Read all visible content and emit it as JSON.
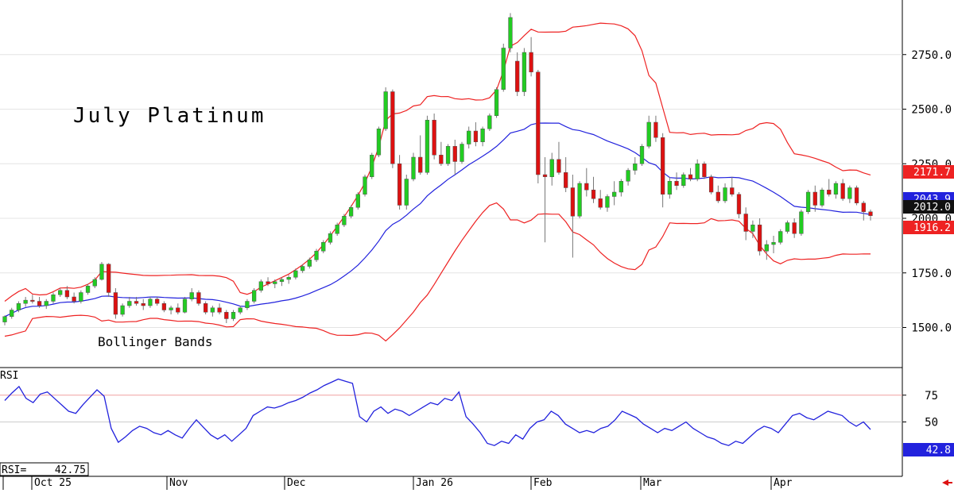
{
  "chart_data": {
    "type": "candlestick",
    "title": "July Platinum",
    "annotation": "Bollinger Bands",
    "price_axis": {
      "ticks": [
        1500,
        1750,
        2000,
        2250,
        2500,
        2750
      ],
      "ylim": [
        1320,
        3000
      ],
      "tick_labels": [
        "1500.0",
        "1750.0",
        "2000.0",
        "2250.0",
        "2500.0",
        "2750.0"
      ]
    },
    "x_labels": [
      "Oct 25",
      "Nov",
      "Dec",
      "Jan 26",
      "Feb",
      "Mar",
      "Apr"
    ],
    "last_values": {
      "upper_band": "2171.7",
      "middle_band": "2043.9",
      "close": "2012.0",
      "lower_band": "1916.2"
    },
    "colors": {
      "up": "#22cc22",
      "down": "#dd1111",
      "upper_band": "#ee2222",
      "lower_band": "#ee2222",
      "middle_band": "#2222dd",
      "rsi_line": "#2222dd",
      "close_tag": "#111111"
    },
    "candles": [
      [
        1525,
        1555,
        1510,
        1550
      ],
      [
        1550,
        1590,
        1540,
        1580
      ],
      [
        1580,
        1620,
        1570,
        1610
      ],
      [
        1610,
        1640,
        1595,
        1625
      ],
      [
        1625,
        1650,
        1610,
        1620
      ],
      [
        1620,
        1640,
        1590,
        1600
      ],
      [
        1600,
        1630,
        1585,
        1620
      ],
      [
        1620,
        1660,
        1610,
        1650
      ],
      [
        1650,
        1680,
        1640,
        1670
      ],
      [
        1670,
        1690,
        1630,
        1640
      ],
      [
        1640,
        1660,
        1610,
        1620
      ],
      [
        1620,
        1670,
        1610,
        1660
      ],
      [
        1660,
        1700,
        1650,
        1690
      ],
      [
        1690,
        1730,
        1680,
        1720
      ],
      [
        1720,
        1800,
        1715,
        1790
      ],
      [
        1790,
        1795,
        1640,
        1660
      ],
      [
        1660,
        1680,
        1540,
        1560
      ],
      [
        1560,
        1610,
        1550,
        1600
      ],
      [
        1600,
        1640,
        1590,
        1620
      ],
      [
        1620,
        1640,
        1600,
        1610
      ],
      [
        1610,
        1630,
        1580,
        1600
      ],
      [
        1600,
        1640,
        1590,
        1630
      ],
      [
        1630,
        1640,
        1600,
        1610
      ],
      [
        1610,
        1620,
        1570,
        1580
      ],
      [
        1580,
        1600,
        1560,
        1590
      ],
      [
        1590,
        1610,
        1560,
        1570
      ],
      [
        1570,
        1640,
        1565,
        1630
      ],
      [
        1630,
        1680,
        1620,
        1660
      ],
      [
        1660,
        1670,
        1600,
        1610
      ],
      [
        1610,
        1620,
        1560,
        1570
      ],
      [
        1570,
        1600,
        1550,
        1590
      ],
      [
        1590,
        1610,
        1560,
        1570
      ],
      [
        1570,
        1580,
        1520,
        1540
      ],
      [
        1540,
        1580,
        1530,
        1570
      ],
      [
        1570,
        1600,
        1560,
        1590
      ],
      [
        1590,
        1630,
        1580,
        1620
      ],
      [
        1620,
        1680,
        1610,
        1670
      ],
      [
        1670,
        1720,
        1660,
        1710
      ],
      [
        1710,
        1730,
        1690,
        1700
      ],
      [
        1700,
        1720,
        1680,
        1710
      ],
      [
        1710,
        1730,
        1690,
        1720
      ],
      [
        1720,
        1740,
        1700,
        1730
      ],
      [
        1730,
        1770,
        1720,
        1760
      ],
      [
        1760,
        1790,
        1750,
        1780
      ],
      [
        1780,
        1820,
        1770,
        1810
      ],
      [
        1810,
        1860,
        1800,
        1850
      ],
      [
        1850,
        1900,
        1840,
        1890
      ],
      [
        1890,
        1940,
        1880,
        1930
      ],
      [
        1930,
        1980,
        1920,
        1970
      ],
      [
        1970,
        2020,
        1960,
        2010
      ],
      [
        2010,
        2060,
        2000,
        2050
      ],
      [
        2050,
        2120,
        2040,
        2110
      ],
      [
        2110,
        2200,
        2100,
        2190
      ],
      [
        2190,
        2300,
        2180,
        2290
      ],
      [
        2290,
        2420,
        2280,
        2410
      ],
      [
        2410,
        2600,
        2400,
        2580
      ],
      [
        2580,
        2590,
        2230,
        2250
      ],
      [
        2250,
        2290,
        2040,
        2060
      ],
      [
        2060,
        2200,
        2040,
        2180
      ],
      [
        2180,
        2300,
        2170,
        2280
      ],
      [
        2280,
        2380,
        2200,
        2210
      ],
      [
        2210,
        2470,
        2200,
        2450
      ],
      [
        2450,
        2480,
        2270,
        2290
      ],
      [
        2290,
        2350,
        2240,
        2250
      ],
      [
        2250,
        2340,
        2240,
        2330
      ],
      [
        2330,
        2360,
        2200,
        2260
      ],
      [
        2260,
        2350,
        2250,
        2340
      ],
      [
        2340,
        2420,
        2320,
        2400
      ],
      [
        2400,
        2440,
        2330,
        2350
      ],
      [
        2350,
        2420,
        2330,
        2410
      ],
      [
        2410,
        2480,
        2400,
        2470
      ],
      [
        2470,
        2600,
        2460,
        2590
      ],
      [
        2590,
        2800,
        2580,
        2780
      ],
      [
        2780,
        2940,
        2760,
        2920
      ],
      [
        2720,
        2760,
        2560,
        2580
      ],
      [
        2580,
        2780,
        2560,
        2760
      ],
      [
        2760,
        2830,
        2650,
        2670
      ],
      [
        2670,
        2680,
        2160,
        2200
      ],
      [
        2200,
        2280,
        1890,
        2190
      ],
      [
        2190,
        2300,
        2150,
        2270
      ],
      [
        2270,
        2350,
        2200,
        2210
      ],
      [
        2210,
        2280,
        2120,
        2140
      ],
      [
        2140,
        2200,
        1820,
        2010
      ],
      [
        2010,
        2170,
        2000,
        2160
      ],
      [
        2160,
        2230,
        2100,
        2130
      ],
      [
        2130,
        2190,
        2070,
        2090
      ],
      [
        2090,
        2130,
        2040,
        2050
      ],
      [
        2050,
        2110,
        2030,
        2100
      ],
      [
        2100,
        2170,
        2060,
        2120
      ],
      [
        2120,
        2180,
        2100,
        2170
      ],
      [
        2170,
        2230,
        2150,
        2220
      ],
      [
        2220,
        2280,
        2200,
        2250
      ],
      [
        2250,
        2340,
        2240,
        2330
      ],
      [
        2330,
        2470,
        2320,
        2440
      ],
      [
        2440,
        2470,
        2350,
        2370
      ],
      [
        2370,
        2390,
        2050,
        2110
      ],
      [
        2110,
        2190,
        2090,
        2170
      ],
      [
        2170,
        2210,
        2130,
        2150
      ],
      [
        2150,
        2210,
        2140,
        2200
      ],
      [
        2200,
        2230,
        2170,
        2180
      ],
      [
        2180,
        2270,
        2170,
        2250
      ],
      [
        2250,
        2260,
        2180,
        2190
      ],
      [
        2190,
        2200,
        2110,
        2120
      ],
      [
        2120,
        2150,
        2070,
        2080
      ],
      [
        2080,
        2160,
        2070,
        2140
      ],
      [
        2140,
        2190,
        2100,
        2110
      ],
      [
        2110,
        2120,
        2000,
        2020
      ],
      [
        2020,
        2050,
        1900,
        1940
      ],
      [
        1940,
        1990,
        1910,
        1970
      ],
      [
        1970,
        2000,
        1830,
        1850
      ],
      [
        1850,
        1900,
        1810,
        1880
      ],
      [
        1880,
        1920,
        1840,
        1890
      ],
      [
        1890,
        1950,
        1880,
        1940
      ],
      [
        1940,
        1990,
        1930,
        1980
      ],
      [
        1980,
        2000,
        1910,
        1930
      ],
      [
        1930,
        2040,
        1920,
        2030
      ],
      [
        2030,
        2130,
        2020,
        2120
      ],
      [
        2120,
        2150,
        2030,
        2060
      ],
      [
        2060,
        2140,
        2050,
        2130
      ],
      [
        2130,
        2180,
        2100,
        2110
      ],
      [
        2110,
        2170,
        2090,
        2160
      ],
      [
        2160,
        2180,
        2080,
        2090
      ],
      [
        2090,
        2150,
        2070,
        2140
      ],
      [
        2140,
        2150,
        2060,
        2070
      ],
      [
        2070,
        2080,
        1990,
        2030
      ],
      [
        2030,
        2040,
        1990,
        2012
      ]
    ],
    "rsi_panel": {
      "label": "RSI",
      "ticks": [
        75,
        50
      ],
      "ylim": [
        0,
        100
      ],
      "readout_label": "RSI=",
      "readout_value": "42.75",
      "last_value": "42.8",
      "values": [
        70,
        77,
        83,
        72,
        68,
        76,
        78,
        72,
        66,
        60,
        58,
        66,
        73,
        80,
        74,
        44,
        31,
        36,
        42,
        46,
        44,
        40,
        38,
        42,
        38,
        35,
        44,
        52,
        45,
        38,
        34,
        38,
        32,
        38,
        44,
        56,
        60,
        64,
        63,
        65,
        68,
        70,
        73,
        77,
        80,
        84,
        87,
        90,
        88,
        86,
        55,
        50,
        60,
        64,
        58,
        62,
        60,
        56,
        60,
        64,
        68,
        66,
        72,
        70,
        78,
        55,
        48,
        40,
        30,
        28,
        32,
        30,
        38,
        34,
        44,
        50,
        52,
        60,
        56,
        48,
        44,
        40,
        42,
        40,
        44,
        46,
        52,
        60,
        57,
        54,
        48,
        44,
        40,
        44,
        42,
        46,
        50,
        44,
        40,
        36,
        34,
        30,
        28,
        32,
        30,
        36,
        42,
        46,
        44,
        40,
        48,
        56,
        58,
        54,
        52,
        56,
        60,
        58,
        56,
        50,
        46,
        50,
        43
      ]
    }
  }
}
